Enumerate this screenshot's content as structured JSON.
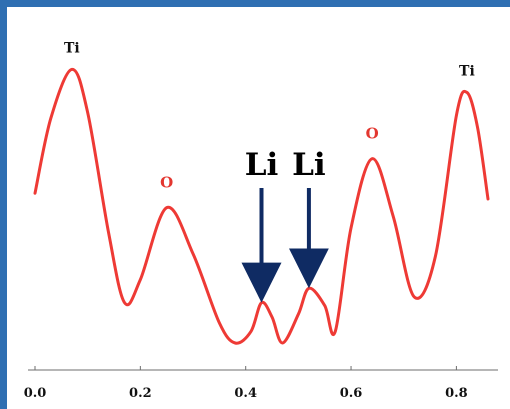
{
  "chart_data": {
    "type": "line",
    "title": "",
    "xlabel": "",
    "ylabel": "",
    "xlim": [
      0.0,
      0.86
    ],
    "ylim": [
      0.0,
      1.0
    ],
    "x_ticks": [
      {
        "value": 0.0,
        "label": "0.0"
      },
      {
        "value": 0.2,
        "label": "0.2"
      },
      {
        "value": 0.4,
        "label": "0.4"
      },
      {
        "value": 0.6,
        "label": "0.6"
      },
      {
        "value": 0.8,
        "label": "0.8"
      }
    ],
    "series": [
      {
        "color": "#ee3a35",
        "points": [
          [
            0.0,
            0.52
          ],
          [
            0.03,
            0.78
          ],
          [
            0.07,
            0.95
          ],
          [
            0.1,
            0.8
          ],
          [
            0.14,
            0.38
          ],
          [
            0.17,
            0.14
          ],
          [
            0.2,
            0.22
          ],
          [
            0.25,
            0.47
          ],
          [
            0.3,
            0.31
          ],
          [
            0.35,
            0.07
          ],
          [
            0.38,
            0.0
          ],
          [
            0.41,
            0.04
          ],
          [
            0.43,
            0.14
          ],
          [
            0.45,
            0.09
          ],
          [
            0.47,
            0.0
          ],
          [
            0.5,
            0.1
          ],
          [
            0.52,
            0.19
          ],
          [
            0.55,
            0.13
          ],
          [
            0.57,
            0.04
          ],
          [
            0.6,
            0.4
          ],
          [
            0.64,
            0.64
          ],
          [
            0.68,
            0.44
          ],
          [
            0.72,
            0.16
          ],
          [
            0.76,
            0.3
          ],
          [
            0.8,
            0.79
          ],
          [
            0.82,
            0.87
          ],
          [
            0.84,
            0.75
          ],
          [
            0.86,
            0.5
          ]
        ]
      }
    ],
    "annotations": [
      {
        "text": "Ti",
        "x": 0.07,
        "y": 0.95,
        "color": "#111111",
        "size": "small"
      },
      {
        "text": "O",
        "x": 0.25,
        "y": 0.47,
        "color": "#e3362f",
        "size": "small"
      },
      {
        "text": "O",
        "x": 0.64,
        "y": 0.64,
        "color": "#e3362f",
        "size": "small"
      },
      {
        "text": "Ti",
        "x": 0.82,
        "y": 0.87,
        "color": "#111111",
        "size": "small"
      },
      {
        "text": "Li",
        "x": 0.43,
        "y": 0.14,
        "color": "#000000",
        "size": "large",
        "arrow": true
      },
      {
        "text": "Li",
        "x": 0.52,
        "y": 0.19,
        "color": "#000000",
        "size": "large",
        "arrow": true
      }
    ],
    "arrow_color": "#0f2b63",
    "grid": false,
    "legend": "none"
  }
}
